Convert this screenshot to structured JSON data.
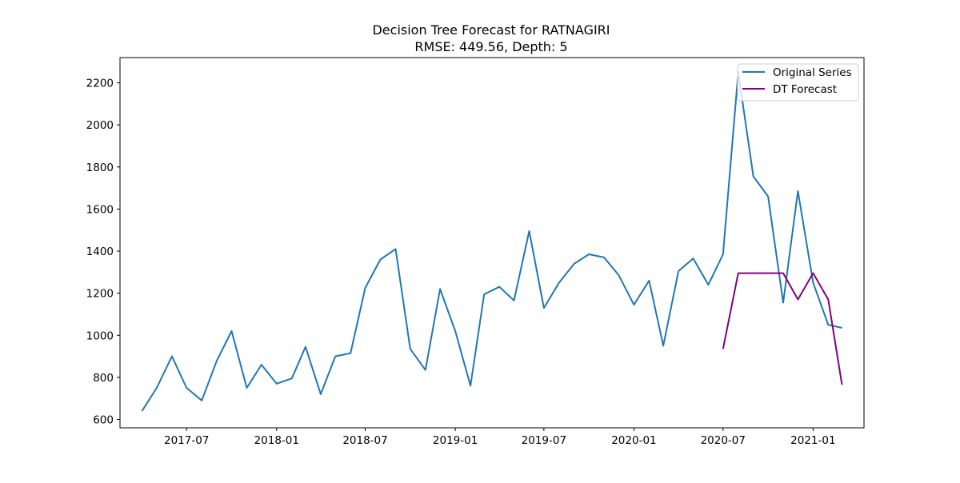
{
  "chart_data": {
    "type": "line",
    "title": "Decision Tree Forecast for RATNAGIRI",
    "subtitle": "RMSE: 449.56, Depth: 5",
    "xlabel": "",
    "ylabel": "",
    "ylim": [
      560,
      2320
    ],
    "xlim": [
      "2017-02-15",
      "2021-04-15"
    ],
    "x_ticks": [
      "2017-07",
      "2018-01",
      "2018-07",
      "2019-01",
      "2019-07",
      "2020-01",
      "2020-07",
      "2021-01"
    ],
    "y_ticks": [
      600,
      800,
      1000,
      1200,
      1400,
      1600,
      1800,
      2000,
      2200
    ],
    "grid": false,
    "legend_position": "top-right",
    "series": [
      {
        "name": "Original Series",
        "color": "#1f77b4",
        "x": [
          "2017-04",
          "2017-05",
          "2017-06",
          "2017-07",
          "2017-08",
          "2017-09",
          "2017-10",
          "2017-11",
          "2017-12",
          "2018-01",
          "2018-02",
          "2018-03",
          "2018-04",
          "2018-05",
          "2018-06",
          "2018-07",
          "2018-08",
          "2018-09",
          "2018-10",
          "2018-11",
          "2018-12",
          "2019-01",
          "2019-02",
          "2019-03",
          "2019-04",
          "2019-05",
          "2019-06",
          "2019-07",
          "2019-08",
          "2019-09",
          "2019-10",
          "2019-11",
          "2019-12",
          "2020-01",
          "2020-02",
          "2020-03",
          "2020-04",
          "2020-05",
          "2020-06",
          "2020-07",
          "2020-08",
          "2020-09",
          "2020-10",
          "2020-11",
          "2020-12",
          "2021-01",
          "2021-02",
          "2021-03"
        ],
        "values": [
          640,
          750,
          900,
          750,
          690,
          880,
          1020,
          750,
          860,
          770,
          795,
          945,
          720,
          900,
          915,
          1225,
          1360,
          1410,
          935,
          835,
          1220,
          1020,
          760,
          1195,
          1230,
          1165,
          1495,
          1130,
          1250,
          1340,
          1385,
          1370,
          1285,
          1145,
          1260,
          950,
          1305,
          1365,
          1240,
          1385,
          2250,
          1755,
          1660,
          1155,
          1685,
          1250,
          1050,
          1035
        ]
      },
      {
        "name": "DT Forecast",
        "color": "#800080",
        "x": [
          "2020-07",
          "2020-08",
          "2020-09",
          "2020-10",
          "2020-11",
          "2020-12",
          "2021-01",
          "2021-02",
          "2021-03"
        ],
        "values": [
          935,
          1295,
          1295,
          1295,
          1295,
          1170,
          1295,
          1170,
          765
        ]
      }
    ]
  }
}
